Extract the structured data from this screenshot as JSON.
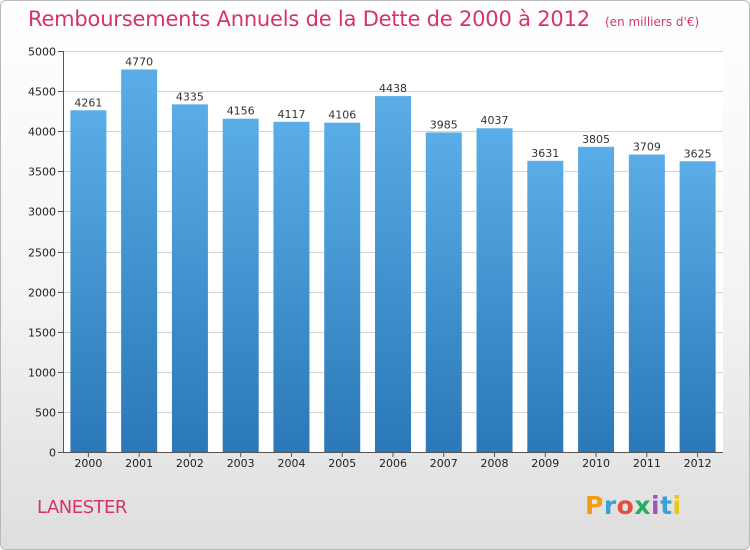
{
  "chart_data": {
    "type": "bar",
    "title": "Remboursements Annuels de la Dette de 2000 à 2012",
    "unit_label": "(en milliers d'€)",
    "categories": [
      "2000",
      "2001",
      "2002",
      "2003",
      "2004",
      "2005",
      "2006",
      "2007",
      "2008",
      "2009",
      "2010",
      "2011",
      "2012"
    ],
    "values": [
      4261,
      4770,
      4335,
      4156,
      4117,
      4106,
      4438,
      3985,
      4037,
      3631,
      3805,
      3709,
      3625
    ],
    "ylim": [
      0,
      5000
    ],
    "yticks": [
      0,
      500,
      1000,
      1500,
      2000,
      2500,
      3000,
      3500,
      4000,
      4500,
      5000
    ],
    "grid": true,
    "legend": "none"
  },
  "footer": {
    "city": "LANESTER",
    "logo": "Proxiti"
  },
  "colors": {
    "title": "#d6336c",
    "bar_top": "#5aade6",
    "bar_bottom": "#2a78b8",
    "logo_letters": [
      "#f39c12",
      "#3aa0d8",
      "#e74c3c",
      "#27ae60",
      "#9b59b6",
      "#3aa0d8",
      "#f1c40f"
    ]
  }
}
